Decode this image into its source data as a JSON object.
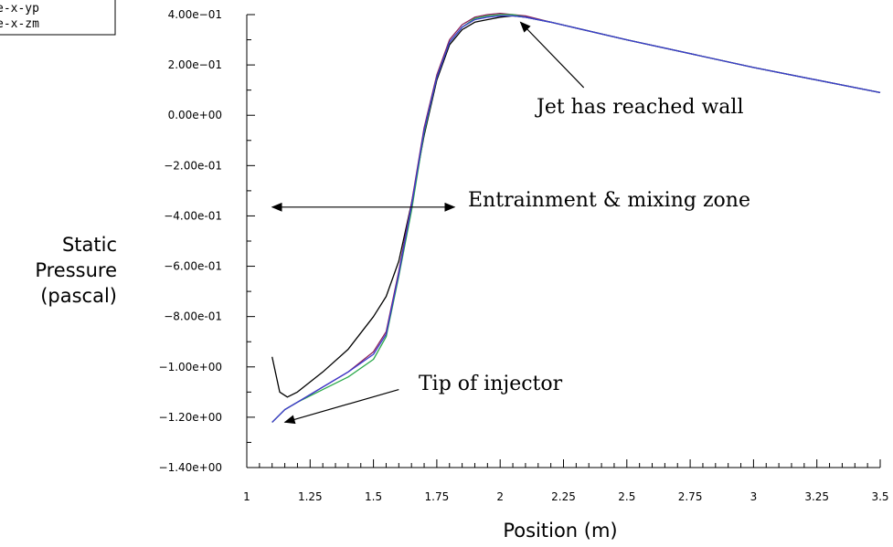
{
  "chart_data": {
    "type": "line",
    "title": "",
    "xlabel": "Position (m)",
    "ylabel": [
      "Static",
      "Pressure",
      "(pascal)"
    ],
    "xlim": [
      1,
      3.5
    ],
    "ylim": [
      -1.4,
      0.4
    ],
    "x_ticks": [
      "1",
      "1.25",
      "1.5",
      "1.75",
      "2",
      "2.25",
      "2.5",
      "2.75",
      "3",
      "3.25",
      "3.5"
    ],
    "y_ticks": [
      "4.00e-01",
      "2.00e-01",
      "0.00e+00",
      "-2.00e-01",
      "-4.00e-01",
      "-6.00e-01",
      "-8.00e-01",
      "-1.00e+00",
      "-1.20e+00",
      "-1.40e+00"
    ],
    "legend": {
      "placement": "top-left",
      "entries": [
        "e-x-yp",
        "e-x-zm"
      ]
    },
    "series": [
      {
        "color": "#000000",
        "x": [
          1.1,
          1.13,
          1.16,
          1.2,
          1.3,
          1.4,
          1.5,
          1.55,
          1.6,
          1.65,
          1.7,
          1.75,
          1.8,
          1.85,
          1.9,
          1.95,
          2.0,
          2.05,
          2.1,
          2.2,
          2.5,
          3.0,
          3.5
        ],
        "y": [
          -0.96,
          -1.1,
          -1.12,
          -1.1,
          -1.02,
          -0.93,
          -0.8,
          -0.72,
          -0.58,
          -0.35,
          -0.08,
          0.14,
          0.28,
          0.34,
          0.37,
          0.38,
          0.39,
          0.395,
          0.39,
          0.37,
          0.3,
          0.19,
          0.09
        ]
      },
      {
        "color": "#8a1f5a",
        "x": [
          1.1,
          1.15,
          1.2,
          1.3,
          1.4,
          1.5,
          1.55,
          1.6,
          1.65,
          1.7,
          1.75,
          1.8,
          1.85,
          1.9,
          1.95,
          2.0,
          2.05,
          2.1,
          2.2,
          2.5,
          3.0,
          3.5
        ],
        "y": [
          -1.22,
          -1.17,
          -1.14,
          -1.08,
          -1.02,
          -0.94,
          -0.86,
          -0.62,
          -0.35,
          -0.05,
          0.16,
          0.3,
          0.36,
          0.39,
          0.4,
          0.405,
          0.4,
          0.395,
          0.37,
          0.3,
          0.19,
          0.09
        ]
      },
      {
        "color": "#2aa84a",
        "x": [
          1.1,
          1.15,
          1.2,
          1.3,
          1.4,
          1.5,
          1.55,
          1.6,
          1.65,
          1.7,
          1.75,
          1.8,
          1.85,
          1.9,
          1.95,
          2.0,
          2.05,
          2.1,
          2.2,
          2.5,
          3.0,
          3.5
        ],
        "y": [
          -1.22,
          -1.17,
          -1.14,
          -1.09,
          -1.04,
          -0.97,
          -0.88,
          -0.64,
          -0.38,
          -0.07,
          0.15,
          0.29,
          0.35,
          0.385,
          0.395,
          0.4,
          0.4,
          0.39,
          0.37,
          0.3,
          0.19,
          0.09
        ]
      },
      {
        "color": "#3a3ad0",
        "x": [
          1.1,
          1.15,
          1.2,
          1.3,
          1.4,
          1.5,
          1.55,
          1.6,
          1.65,
          1.7,
          1.75,
          1.8,
          1.85,
          1.9,
          1.95,
          2.0,
          2.05,
          2.1,
          2.2,
          2.5,
          3.0,
          3.5
        ],
        "y": [
          -1.22,
          -1.17,
          -1.14,
          -1.08,
          -1.02,
          -0.95,
          -0.87,
          -0.63,
          -0.36,
          -0.06,
          0.15,
          0.29,
          0.35,
          0.38,
          0.39,
          0.395,
          0.395,
          0.39,
          0.37,
          0.3,
          0.19,
          0.09
        ]
      }
    ],
    "annotations": [
      {
        "text": "Jet has reached wall",
        "arrow_tip": [
          2.08,
          0.37
        ],
        "arrow_tail": [
          2.33,
          0.11
        ],
        "type": "single"
      },
      {
        "text": "Entrainment & mixing zone",
        "arrow_tip": [
          1.1,
          -0.365
        ],
        "arrow_tail": [
          1.82,
          -0.365
        ],
        "type": "double"
      },
      {
        "text": "Tip of injector",
        "arrow_tip": [
          1.15,
          -1.22
        ],
        "arrow_tail": [
          1.6,
          -1.09
        ],
        "type": "single"
      }
    ]
  }
}
